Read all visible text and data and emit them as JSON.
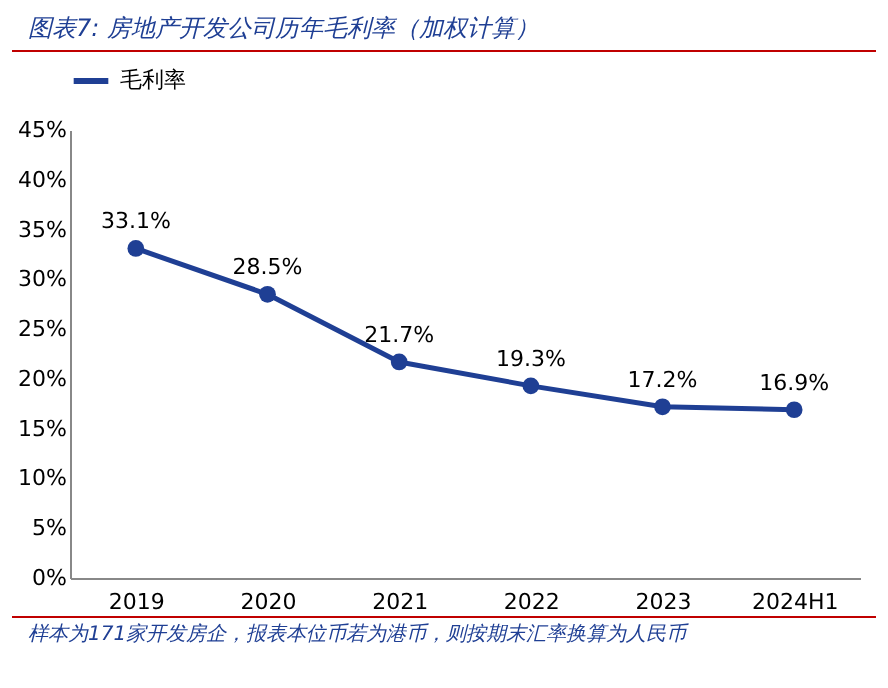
{
  "chart_data": {
    "type": "line",
    "title": "图表7: 房地产开发公司历年毛利率（加权计算）",
    "categories": [
      "2019",
      "2020",
      "2021",
      "2022",
      "2023",
      "2024H1"
    ],
    "series": [
      {
        "name": "毛利率",
        "color": "#1f3f94",
        "values": [
          33.1,
          28.5,
          21.7,
          19.3,
          17.2,
          16.9
        ],
        "value_labels": [
          "33.1%",
          "28.5%",
          "21.7%",
          "19.3%",
          "17.2%",
          "16.9%"
        ]
      }
    ],
    "ylim": [
      0,
      45
    ],
    "yticks": [
      {
        "value": 0,
        "label": "0%"
      },
      {
        "value": 5,
        "label": "5%"
      },
      {
        "value": 10,
        "label": "10%"
      },
      {
        "value": 15,
        "label": "15%"
      },
      {
        "value": 20,
        "label": "20%"
      },
      {
        "value": 25,
        "label": "25%"
      },
      {
        "value": 30,
        "label": "30%"
      },
      {
        "value": 35,
        "label": "35%"
      },
      {
        "value": 40,
        "label": "40%"
      },
      {
        "value": 45,
        "label": "45%"
      }
    ],
    "legend": "top",
    "marker": "circle",
    "line_style": "solid",
    "grid": false,
    "annotations": [
      "样本为171家开发房企，报表本位币若为港币，则按期末汇率换算为人民币"
    ]
  }
}
